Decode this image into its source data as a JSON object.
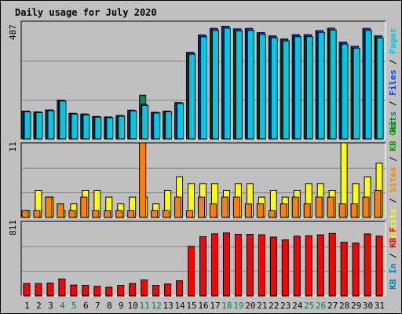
{
  "title": "Daily usage for July 2020",
  "colors": {
    "hits": "#00805c",
    "files": "#0040ff",
    "pages": "#00c8e0",
    "visits": "#ffff00",
    "sites": "#ff8000",
    "kbin": "#0080c0",
    "kbout": "#00a000",
    "kbf": "#ff0000",
    "title": "#0000ff",
    "weekend": "#008040",
    "plot_bg": "#c0c0c0"
  },
  "legends": {
    "top": [
      {
        "text": "Hits",
        "color": "hits"
      },
      {
        "text": " / ",
        "color": "black"
      },
      {
        "text": "Files",
        "color": "files"
      },
      {
        "text": " / ",
        "color": "black"
      },
      {
        "text": "Pages",
        "color": "pages"
      }
    ],
    "middle": [
      {
        "text": "Visits",
        "color": "visits"
      },
      {
        "text": " / ",
        "color": "black"
      },
      {
        "text": "Sites",
        "color": "sites"
      },
      {
        "text": " / ",
        "color": "black"
      },
      {
        "text": "KB Out",
        "color": "kbout"
      }
    ],
    "bottom": [
      {
        "text": "KB In",
        "color": "kbin"
      },
      {
        "text": " / ",
        "color": "black"
      },
      {
        "text": "KB F",
        "color": "kbf"
      }
    ]
  },
  "chart_data": {
    "type": "bar",
    "title": "Daily usage for July 2020",
    "categories": [
      "1",
      "2",
      "3",
      "4",
      "5",
      "6",
      "7",
      "8",
      "9",
      "10",
      "11",
      "12",
      "13",
      "14",
      "15",
      "16",
      "17",
      "18",
      "19",
      "20",
      "21",
      "22",
      "23",
      "24",
      "25",
      "26",
      "27",
      "28",
      "29",
      "30",
      "31"
    ],
    "weekend_days": [
      "4",
      "5",
      "11",
      "12",
      "18",
      "19",
      "25",
      "26"
    ],
    "panels": [
      {
        "name": "top",
        "max_label": "487",
        "ylim": [
          0,
          487
        ],
        "series": [
          {
            "name": "Hits",
            "color": "hits",
            "values": [
              115,
              112,
              120,
              160,
              106,
              103,
              93,
              91,
              97,
              119,
              181,
              110,
              115,
              150,
              358,
              430,
              457,
              466,
              455,
              457,
              440,
              426,
              413,
              431,
              431,
              448,
              458,
              400,
              383,
              457,
              426
            ]
          },
          {
            "name": "Files",
            "color": "files",
            "values": [
              115,
              112,
              120,
              160,
              106,
              103,
              93,
              91,
              97,
              119,
              143,
              110,
              115,
              150,
              358,
              430,
              457,
              466,
              455,
              457,
              440,
              426,
              413,
              431,
              431,
              448,
              458,
              400,
              383,
              457,
              426
            ]
          },
          {
            "name": "Pages",
            "color": "pages",
            "values": [
              112,
              109,
              117,
              157,
              103,
              100,
              90,
              88,
              94,
              116,
              138,
              107,
              112,
              147,
              350,
              422,
              449,
              458,
              447,
              449,
              432,
              418,
              405,
              423,
              423,
              440,
              450,
              392,
              375,
              449,
              418
            ]
          }
        ]
      },
      {
        "name": "middle",
        "max_label": "11",
        "ylim": [
          0,
          11
        ],
        "series": [
          {
            "name": "Visits",
            "color": "visits",
            "values": [
              1,
              4,
              3,
              1,
              2,
              4,
              4,
              3,
              2,
              3,
              3,
              2,
              4,
              6,
              5,
              5,
              5,
              4,
              5,
              5,
              3,
              4,
              3,
              4,
              5,
              5,
              4,
              11,
              5,
              6,
              8
            ]
          },
          {
            "name": "Sites",
            "color": "sites",
            "values": [
              1,
              1,
              3,
              2,
              1,
              3,
              1,
              1,
              1,
              1,
              11,
              1,
              1,
              3,
              1,
              3,
              2,
              3,
              3,
              2,
              2,
              1,
              2,
              3,
              2,
              3,
              3,
              2,
              2,
              3,
              4
            ]
          }
        ]
      },
      {
        "name": "bottom",
        "max_label": "811",
        "ylim": [
          0,
          811
        ],
        "series": [
          {
            "name": "KB F",
            "color": "kbf",
            "values": [
              135,
              135,
              140,
              185,
              118,
              115,
              105,
              95,
              115,
              135,
              175,
              115,
              130,
              165,
              540,
              645,
              675,
              685,
              670,
              670,
              665,
              640,
              610,
              650,
              655,
              665,
              680,
              585,
              575,
              675,
              650
            ]
          }
        ]
      }
    ]
  }
}
